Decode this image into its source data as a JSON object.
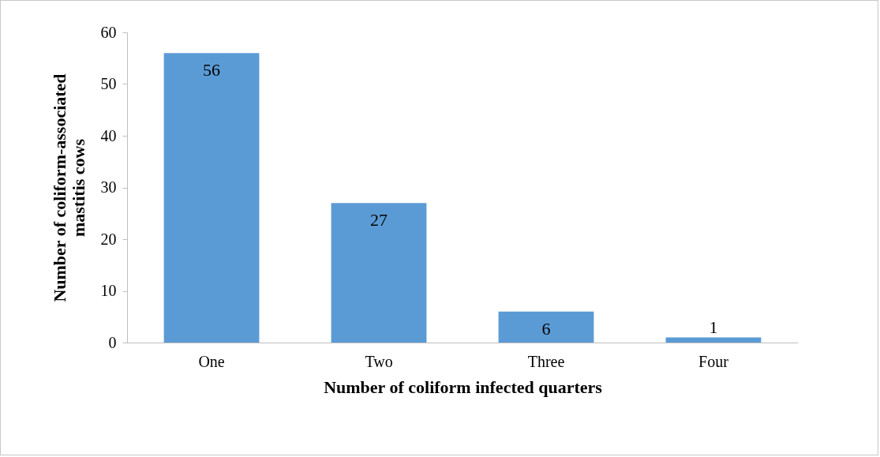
{
  "chart_data": {
    "type": "bar",
    "xlabel": "Number of coliform infected quarters",
    "ylabel": "Number of coliform-associated mastitis cows",
    "categories": [
      "One",
      "Two",
      "Three",
      "Four"
    ],
    "values": [
      56,
      27,
      6,
      1
    ],
    "color": "#5b9bd5",
    "ylim": [
      0,
      60
    ],
    "yticks": [
      0,
      10,
      20,
      30,
      40,
      50,
      60
    ],
    "grid": false,
    "data_labels": true
  }
}
